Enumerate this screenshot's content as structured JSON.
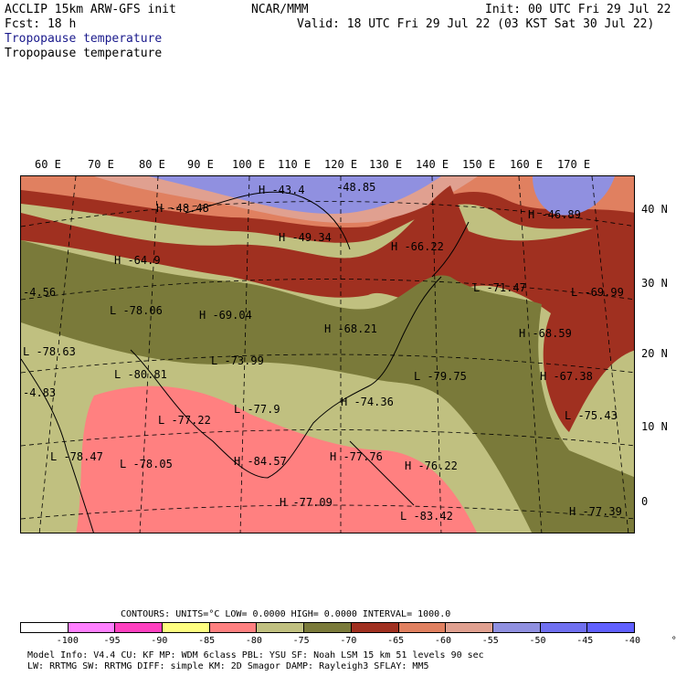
{
  "header": {
    "model": "ACCLIP 15km ARW-GFS init",
    "org": "NCAR/MMM",
    "init": "Init: 00 UTC Fri 29 Jul 22",
    "fcst": "Fcst:   18 h",
    "valid": "Valid: 18 UTC Fri 29 Jul 22 (03 KST Sat 30 Jul 22)",
    "subtitle1": "Tropopause temperature",
    "subtitle2": "Tropopause temperature"
  },
  "axes": {
    "lon_labels": [
      "60 E",
      "70 E",
      "80 E",
      "90 E",
      "100 E",
      "110 E",
      "120 E",
      "130 E",
      "140 E",
      "150 E",
      "160 E",
      "170 E"
    ],
    "lat_labels": [
      "40 N",
      "30 N",
      "20 N",
      "10 N",
      "0"
    ]
  },
  "map_labels": [
    {
      "t": "H",
      "v": "-43.4"
    },
    {
      "t": "",
      "v": "-48.85"
    },
    {
      "t": "H",
      "v": "-48.48"
    },
    {
      "t": "H",
      "v": "-49.34"
    },
    {
      "t": "H",
      "v": "-46.89"
    },
    {
      "t": "H",
      "v": "-64.9"
    },
    {
      "t": "H",
      "v": "-66.22"
    },
    {
      "t": "L",
      "v": "-71.47"
    },
    {
      "t": "L",
      "v": "-69.99"
    },
    {
      "t": "",
      "v": "-4.56"
    },
    {
      "t": "L",
      "v": "-78.06"
    },
    {
      "t": "H",
      "v": "-69.04"
    },
    {
      "t": "H",
      "v": "-68.21"
    },
    {
      "t": "H",
      "v": "-68.59"
    },
    {
      "t": "L",
      "v": "-78.63"
    },
    {
      "t": "L",
      "v": "-73.99"
    },
    {
      "t": "L",
      "v": "-80.81"
    },
    {
      "t": "L",
      "v": "-79.75"
    },
    {
      "t": "H",
      "v": "-67.38"
    },
    {
      "t": "",
      "v": "-4.83"
    },
    {
      "t": "H",
      "v": "-74.36"
    },
    {
      "t": "L",
      "v": "-77.9"
    },
    {
      "t": "L",
      "v": "-77.22"
    },
    {
      "t": "L",
      "v": "-75.43"
    },
    {
      "t": "L",
      "v": "-78.47"
    },
    {
      "t": "L",
      "v": "-78.05"
    },
    {
      "t": "H",
      "v": "-84.57"
    },
    {
      "t": "H",
      "v": "-77.76"
    },
    {
      "t": "H",
      "v": "-76.22"
    },
    {
      "t": "H",
      "v": "-77.09"
    },
    {
      "t": "L",
      "v": "-83.42"
    },
    {
      "t": "H",
      "v": "-77.39"
    }
  ],
  "contours": {
    "line": "CONTOURS:  UNITS=°C  LOW=  0.0000          HIGH=  0.0000        INTERVAL=   1000.0"
  },
  "legend": {
    "colors": [
      "#ffffff",
      "#ff80ff",
      "#ff40c0",
      "#ffff80",
      "#ff8080",
      "#c0c080",
      "#7a7a3a",
      "#a03020",
      "#e08060",
      "#e0a090",
      "#9090e0",
      "#7070f0",
      "#6060ff"
    ],
    "labels": [
      "-100",
      "-95",
      "-90",
      "-85",
      "-80",
      "-75",
      "-70",
      "-65",
      "-60",
      "-55",
      "-50",
      "-45",
      "-40",
      "°C"
    ]
  },
  "footer": {
    "line1": "Model Info: V4.4       CU: KF      MP: WDM 6class  PBL: YSU     SF: Noah LSM    15 km   51 levels   90 sec",
    "line2": "                       LW: RRTMG   SW: RRTMG   DIFF: simple KM: 2D Smagor DAMP: Rayleigh3  SFLAY: MM5"
  }
}
